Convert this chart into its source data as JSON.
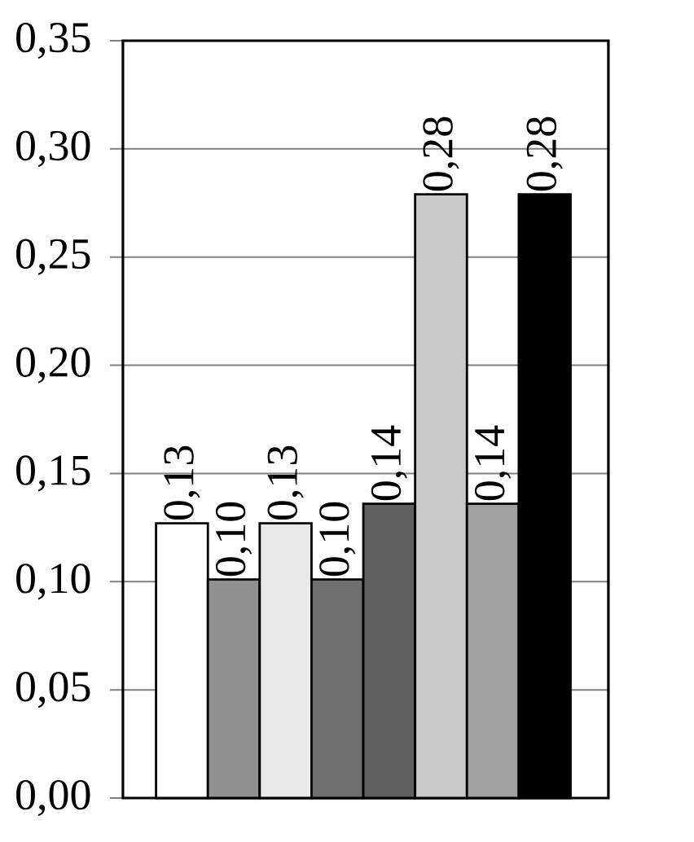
{
  "chart_data": {
    "type": "bar",
    "categories": [
      null,
      null,
      null,
      null,
      null,
      null,
      null,
      null
    ],
    "values": [
      0.127,
      0.101,
      0.127,
      0.101,
      0.136,
      0.279,
      0.136,
      0.279
    ],
    "value_labels": [
      "0,13",
      "0,10",
      "0,13",
      "0,10",
      "0,14",
      "0,28",
      "0,14",
      "0,28"
    ],
    "colors": [
      "#ffffff",
      "#909090",
      "#e8e8e8",
      "#707070",
      "#606060",
      "#c8c8c8",
      "#a0a0a0",
      "#000000"
    ],
    "ylim": [
      0,
      0.35
    ],
    "yticks": [
      {
        "value": 0,
        "label": "0,00"
      },
      {
        "value": 0.05,
        "label": "0,05"
      },
      {
        "value": 0.1,
        "label": "0,10"
      },
      {
        "value": 0.15,
        "label": "0,15"
      },
      {
        "value": 0.2,
        "label": "0,20"
      },
      {
        "value": 0.25,
        "label": "0,25"
      },
      {
        "value": 0.3,
        "label": "0,30"
      },
      {
        "value": 0.35,
        "label": "0,35"
      }
    ],
    "grid": "y"
  }
}
